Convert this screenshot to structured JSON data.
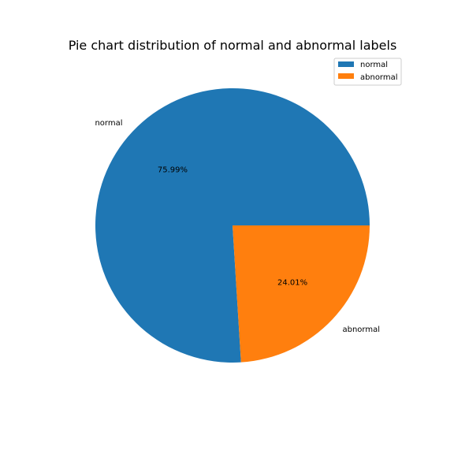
{
  "chart_data": {
    "type": "pie",
    "title": "Pie chart distribution of normal and abnormal labels",
    "categories": [
      "normal",
      "abnormal"
    ],
    "values": [
      75.99,
      24.01
    ],
    "percent_labels": [
      "75.99%",
      "24.01%"
    ],
    "colors": [
      "#1f77b4",
      "#ff7f0e"
    ],
    "legend": {
      "placement": "top-right",
      "entries": [
        "normal",
        "abnormal"
      ]
    }
  }
}
